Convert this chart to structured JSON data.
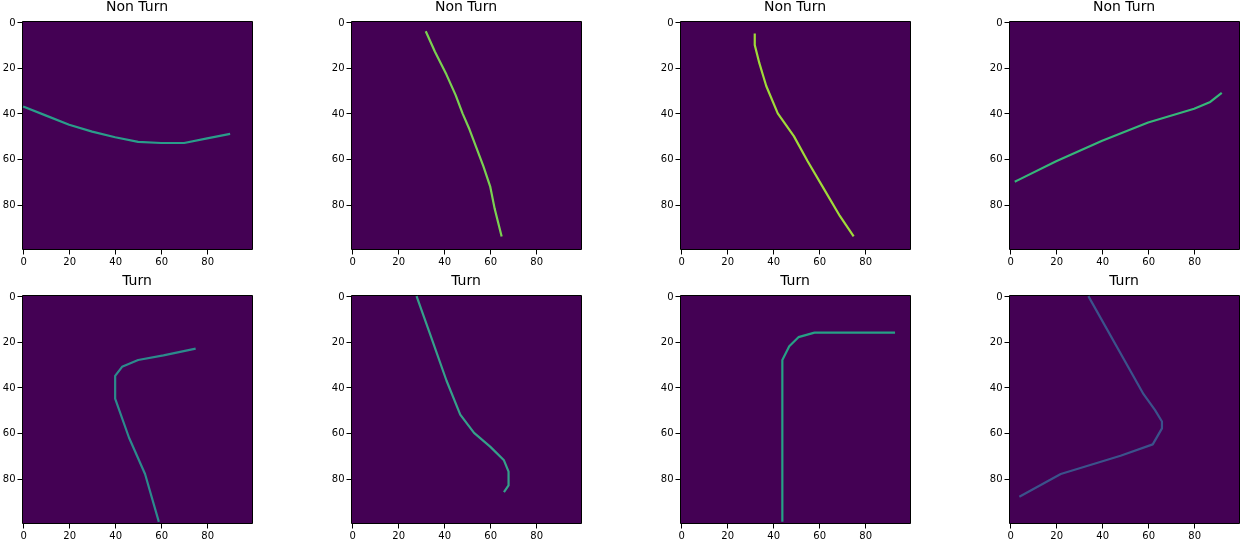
{
  "chart_data": [
    {
      "type": "line",
      "title": "Non Turn",
      "x": [
        0,
        10,
        20,
        30,
        40,
        50,
        60,
        70,
        80,
        90
      ],
      "series": [
        {
          "color": "#2a9d8a",
          "values": [
            37,
            41,
            45,
            48,
            50.5,
            52.5,
            53,
            53,
            51,
            49
          ]
        }
      ],
      "xlim": [
        -0.5,
        99.5
      ],
      "ylim": [
        99.5,
        -0.5
      ],
      "xticks": [
        0,
        20,
        40,
        60,
        80
      ],
      "yticks": [
        0,
        20,
        40,
        60,
        80
      ]
    },
    {
      "type": "line",
      "title": "Non Turn",
      "x": [
        32,
        36,
        41,
        45,
        48,
        51,
        54,
        57,
        60,
        62,
        65
      ],
      "series": [
        {
          "color": "#7ad151",
          "values": [
            4,
            13,
            23,
            32,
            40,
            47,
            55,
            63,
            72,
            82,
            94
          ]
        }
      ],
      "xlim": [
        -0.5,
        99.5
      ],
      "ylim": [
        99.5,
        -0.5
      ],
      "xticks": [
        0,
        20,
        40,
        60,
        80
      ],
      "yticks": [
        0,
        20,
        40,
        60,
        80
      ]
    },
    {
      "type": "line",
      "title": "Non Turn",
      "x": [
        32,
        32,
        34,
        37,
        42,
        49,
        55,
        62,
        69,
        75
      ],
      "series": [
        {
          "color": "#a0da39",
          "values": [
            5,
            10,
            18,
            28,
            40,
            50,
            61,
            73,
            85,
            94
          ]
        }
      ],
      "xlim": [
        -0.5,
        99.5
      ],
      "ylim": [
        99.5,
        -0.5
      ],
      "xticks": [
        0,
        20,
        40,
        60,
        80
      ],
      "yticks": [
        0,
        20,
        40,
        60,
        80
      ]
    },
    {
      "type": "line",
      "title": "Non Turn",
      "x": [
        2,
        20,
        40,
        60,
        80,
        87,
        92
      ],
      "series": [
        {
          "color": "#35b779",
          "values": [
            70,
            61,
            52,
            44,
            38,
            35,
            31
          ]
        }
      ],
      "xlim": [
        -0.5,
        99.5
      ],
      "ylim": [
        99.5,
        -0.5
      ],
      "xticks": [
        0,
        20,
        40,
        60,
        80
      ],
      "yticks": [
        0,
        20,
        40,
        60,
        80
      ]
    },
    {
      "type": "line",
      "title": "Turn",
      "x": [
        75,
        61,
        50,
        43,
        40,
        40,
        46,
        53,
        59
      ],
      "series": [
        {
          "color": "#2c8a8c",
          "values": [
            23,
            26,
            28,
            31,
            35,
            45,
            62,
            78,
            99
          ]
        }
      ],
      "xlim": [
        -0.5,
        99.5
      ],
      "ylim": [
        99.5,
        -0.5
      ],
      "xticks": [
        0,
        20,
        40,
        60,
        80
      ],
      "yticks": [
        0,
        20,
        40,
        60,
        80
      ]
    },
    {
      "type": "line",
      "title": "Turn",
      "x": [
        28,
        34,
        41,
        47,
        53,
        60,
        66,
        68,
        68,
        66
      ],
      "series": [
        {
          "color": "#35a08a",
          "values": [
            0,
            17,
            37,
            52,
            60,
            66,
            72,
            77,
            83,
            86
          ]
        }
      ],
      "xlim": [
        -0.5,
        99.5
      ],
      "ylim": [
        99.5,
        -0.5
      ],
      "xticks": [
        0,
        20,
        40,
        60,
        80
      ],
      "yticks": [
        0,
        20,
        40,
        60,
        80
      ]
    },
    {
      "type": "line",
      "title": "Turn",
      "x": [
        93,
        58,
        51,
        47,
        44,
        44
      ],
      "series": [
        {
          "color": "#26a085",
          "values": [
            16,
            16,
            18,
            22,
            28,
            99
          ]
        }
      ],
      "xlim": [
        -0.5,
        99.5
      ],
      "ylim": [
        99.5,
        -0.5
      ],
      "xticks": [
        0,
        20,
        40,
        60,
        80
      ],
      "yticks": [
        0,
        20,
        40,
        60,
        80
      ]
    },
    {
      "type": "line",
      "title": "Turn",
      "x": [
        34,
        58,
        63,
        66,
        66,
        62,
        48,
        22,
        4
      ],
      "series": [
        {
          "color": "#3b528b",
          "values": [
            0,
            43,
            50,
            55,
            58,
            65,
            70,
            78,
            88
          ]
        }
      ],
      "xlim": [
        -0.5,
        99.5
      ],
      "ylim": [
        99.5,
        -0.5
      ],
      "xticks": [
        0,
        20,
        40,
        60,
        80
      ],
      "yticks": [
        0,
        20,
        40,
        60,
        80
      ]
    }
  ]
}
